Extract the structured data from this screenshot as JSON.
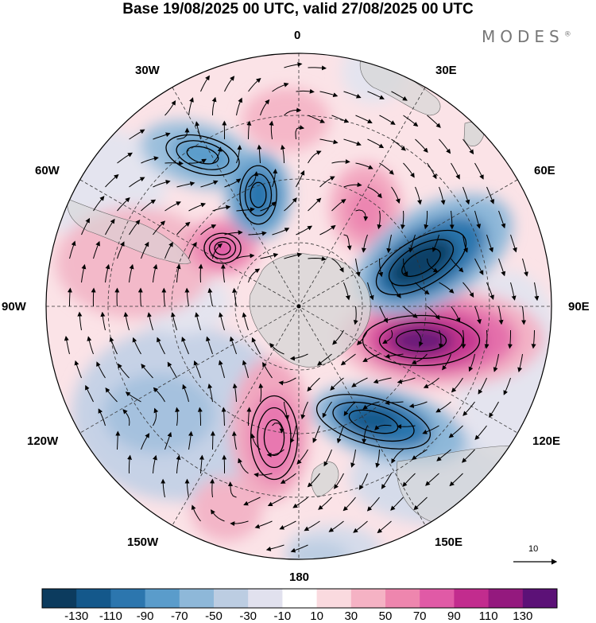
{
  "title": "Base 19/08/2025 00 UTC, valid 27/08/2025 00 UTC",
  "brand": {
    "text": "MODES",
    "mark": "®"
  },
  "longitude_labels": {
    "lon0": "0",
    "lon30e": "30E",
    "lon60e": "60E",
    "lon90e": "90E",
    "lon120e": "120E",
    "lon150e": "150E",
    "lon180": "180",
    "lon150w": "150W",
    "lon120w": "120W",
    "lon90w": "90W",
    "lon60w": "60W",
    "lon30w": "30W"
  },
  "reference_vector": {
    "value": "10",
    "icon": "arrow-right-icon"
  },
  "colorbar": {
    "colors": [
      "#0c3b5e",
      "#14588b",
      "#2c76ae",
      "#5a9ccb",
      "#8eb8d9",
      "#bccde2",
      "#e1e1ee",
      "#ffffff",
      "#fadadf",
      "#f5b2c4",
      "#ee86ae",
      "#e05aa6",
      "#c22c8e",
      "#94197e",
      "#5c1177"
    ],
    "labels": [
      "-130",
      "-110",
      "-90",
      "-70",
      "-50",
      "-30",
      "-10",
      "10",
      "30",
      "50",
      "70",
      "90",
      "110",
      "130"
    ]
  },
  "colors": {
    "land": "#d6d6d6",
    "background": "#ffffff",
    "contour": "#000000"
  }
}
